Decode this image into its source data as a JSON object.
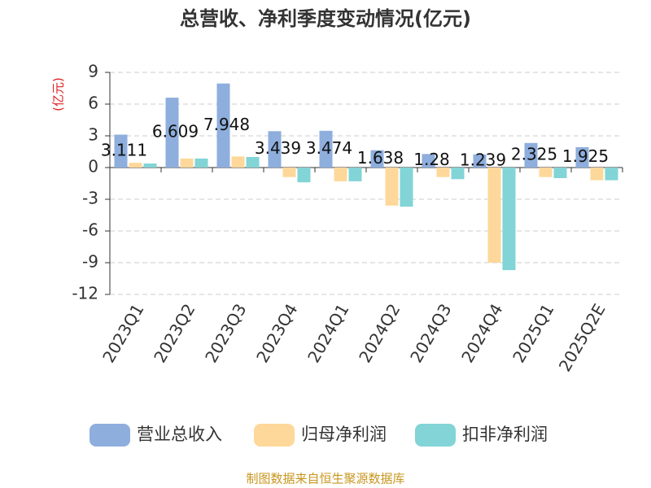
{
  "chart_data": {
    "type": "bar",
    "title": "总营收、净利季度变动情况(亿元)",
    "y_label": "(亿元)",
    "categories": [
      "2023Q1",
      "2023Q2",
      "2023Q3",
      "2023Q4",
      "2024Q1",
      "2024Q2",
      "2024Q3",
      "2024Q4",
      "2025Q1",
      "2025Q2E"
    ],
    "series": [
      {
        "name": "营业总收入",
        "color": "#8eaedd",
        "values": [
          3.111,
          6.609,
          7.948,
          3.439,
          3.474,
          1.638,
          1.28,
          1.239,
          2.325,
          1.925
        ],
        "labels": true
      },
      {
        "name": "归母净利润",
        "color": "#fdd89a",
        "values": [
          0.45,
          0.85,
          1.05,
          -0.9,
          -1.3,
          -3.6,
          -0.9,
          -9.0,
          -0.9,
          -1.2
        ]
      },
      {
        "name": "扣非净利润",
        "color": "#82d4d6",
        "values": [
          0.38,
          0.85,
          1.0,
          -1.4,
          -1.3,
          -3.7,
          -1.1,
          -9.7,
          -1.0,
          -1.2
        ]
      }
    ],
    "ylim": [
      -12,
      9
    ],
    "yticks": [
      -12,
      -9,
      -6,
      -3,
      0,
      3,
      6,
      9
    ],
    "grid": true,
    "source": "制图数据来自恒生聚源数据库"
  }
}
